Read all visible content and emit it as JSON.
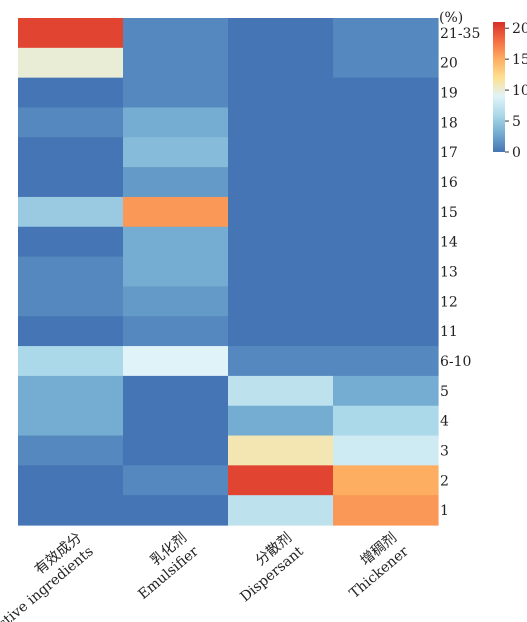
{
  "chart_data": {
    "type": "heatmap",
    "unit_label": "(%)",
    "rows": [
      "21-35",
      "20",
      "19",
      "18",
      "17",
      "16",
      "15",
      "14",
      "13",
      "12",
      "11",
      "6-10",
      "5",
      "4",
      "3",
      "2",
      "1"
    ],
    "columns": [
      {
        "cn": "有效成分",
        "en": "Active ingredients"
      },
      {
        "cn": "乳化剂",
        "en": "Emulsifier"
      },
      {
        "cn": "分散剂",
        "en": "Dispersant"
      },
      {
        "cn": "增稠剂",
        "en": "Thickener"
      }
    ],
    "values": [
      [
        20,
        1,
        0,
        1
      ],
      [
        10,
        1,
        0,
        1
      ],
      [
        0,
        1,
        0,
        0
      ],
      [
        1,
        3,
        0,
        0
      ],
      [
        0,
        4,
        0,
        0
      ],
      [
        0,
        2,
        0,
        0
      ],
      [
        5,
        16,
        0,
        0
      ],
      [
        0,
        3,
        0,
        0
      ],
      [
        1,
        3,
        0,
        0
      ],
      [
        1,
        2,
        0,
        0
      ],
      [
        0,
        1,
        0,
        0
      ],
      [
        6,
        9,
        1,
        1
      ],
      [
        3,
        0,
        7,
        3
      ],
      [
        3,
        0,
        3,
        6
      ],
      [
        1,
        0,
        11,
        8
      ],
      [
        0,
        1,
        20,
        15
      ],
      [
        0,
        0,
        7,
        16
      ]
    ],
    "colorbar": {
      "ticks": [
        "20",
        "15",
        "10",
        "5",
        "0"
      ],
      "range": [
        0,
        21
      ],
      "colors": [
        "#4575b4",
        "#74add1",
        "#abd9e9",
        "#e0f3f8",
        "#fee090",
        "#fdae61",
        "#f46d43",
        "#d73027"
      ]
    }
  }
}
